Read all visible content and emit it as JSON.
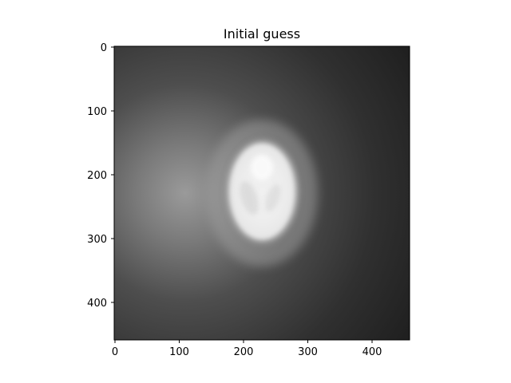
{
  "title": "Initial guess",
  "image": {
    "description_colormap": "gray",
    "background_color": "#222222",
    "highlight_color": "#f2f2f2"
  },
  "axes": {
    "x_ticks": [
      "0",
      "100",
      "200",
      "300",
      "400"
    ],
    "y_ticks": [
      "0",
      "100",
      "200",
      "300",
      "400"
    ],
    "x_range": [
      0,
      460
    ],
    "y_range": [
      0,
      460
    ]
  }
}
